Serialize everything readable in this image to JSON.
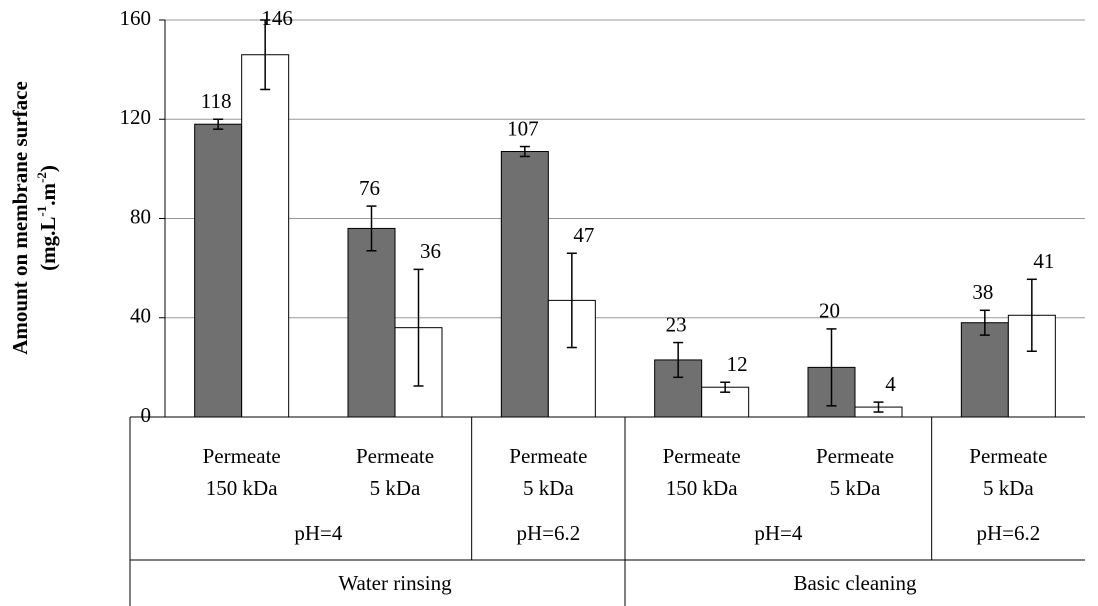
{
  "chart_data": {
    "type": "bar",
    "y_label": "Amount on membrane surface",
    "y_label_unit": [
      "(mg.L",
      "-1",
      ".m",
      "-2",
      ")"
    ],
    "categories": [
      [
        "Permeate",
        "150 kDa"
      ],
      [
        "Permeate",
        "5 kDa"
      ],
      [
        "Permeate",
        "5 kDa"
      ],
      [
        "Permeate",
        "150 kDa"
      ],
      [
        "Permeate",
        "5 kDa"
      ],
      [
        "Permeate",
        "5 kDa"
      ]
    ],
    "groups": [
      {
        "label": "pH=4",
        "size": 2
      },
      {
        "label": "pH=6.2",
        "size": 1
      },
      {
        "label": "pH=4",
        "size": 2
      },
      {
        "label": "pH=6.2",
        "size": 1
      }
    ],
    "supergroups": [
      {
        "label": "Water rinsing",
        "size": 3
      },
      {
        "label": "Basic cleaning",
        "size": 3
      }
    ],
    "series": [
      {
        "color": "#707070",
        "values": [
          118,
          76,
          107,
          23,
          20,
          38
        ],
        "errors": [
          2,
          9,
          2,
          7,
          15.5,
          5
        ]
      },
      {
        "color": "#ffffff",
        "values": [
          146,
          36,
          47,
          12,
          4,
          41
        ],
        "errors": [
          14,
          23.5,
          19,
          2,
          2,
          14.5
        ]
      }
    ],
    "ylim": [
      0,
      160
    ],
    "yticks": [
      0,
      40,
      80,
      120,
      160
    ],
    "grid": true
  }
}
